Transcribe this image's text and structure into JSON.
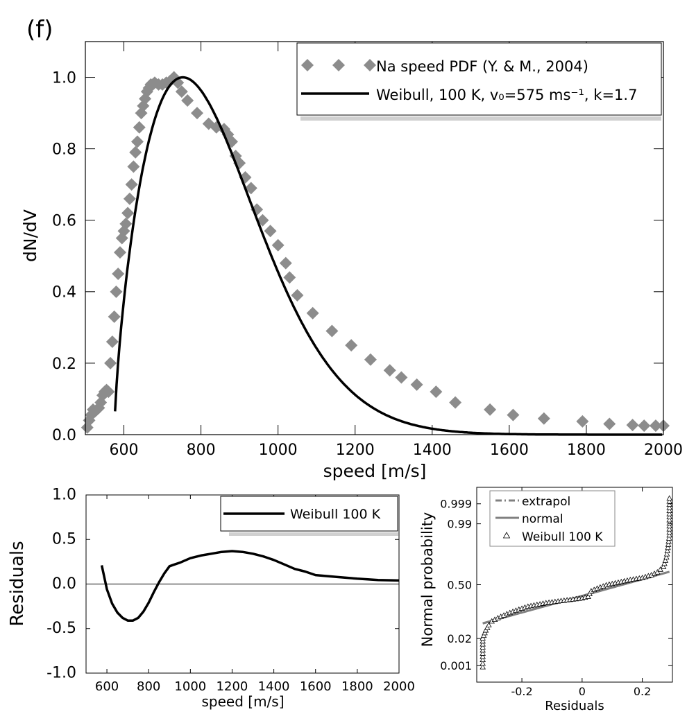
{
  "panel_label": "(f)",
  "chart_data": [
    {
      "id": "main",
      "type": "scatter",
      "title": "",
      "xlabel": "speed [m/s]",
      "ylabel": "dN/dV",
      "xlim": [
        500,
        2000
      ],
      "ylim": [
        0,
        1.1
      ],
      "xticks": [
        600,
        800,
        1000,
        1200,
        1400,
        1600,
        1800,
        2000
      ],
      "yticks": [
        0.0,
        0.2,
        0.4,
        0.6,
        0.8,
        1.0
      ],
      "ytick_labels": [
        "0.0",
        "0.2",
        "0.4",
        "0.6",
        "0.8",
        "1.0"
      ],
      "grid": false,
      "legend_position": "top-right",
      "series": [
        {
          "name": "Na speed PDF (Y. & M., 2004)",
          "style": "diamond-markers",
          "color": "#8c8c8c",
          "x": [
            505,
            510,
            515,
            520,
            525,
            530,
            535,
            540,
            545,
            550,
            555,
            560,
            565,
            570,
            575,
            580,
            585,
            590,
            595,
            600,
            605,
            610,
            615,
            620,
            625,
            630,
            635,
            640,
            645,
            650,
            655,
            660,
            665,
            670,
            675,
            680,
            690,
            700,
            710,
            720,
            730,
            740,
            750,
            765,
            790,
            820,
            840,
            860,
            870,
            880,
            890,
            900,
            915,
            930,
            945,
            960,
            980,
            1000,
            1020,
            1030,
            1050,
            1090,
            1140,
            1190,
            1240,
            1290,
            1320,
            1360,
            1410,
            1460,
            1550,
            1610,
            1690,
            1790,
            1860,
            1920,
            1950,
            1980,
            2000
          ],
          "y": [
            0.02,
            0.04,
            0.055,
            0.07,
            0.065,
            0.07,
            0.075,
            0.09,
            0.11,
            0.12,
            0.125,
            0.12,
            0.2,
            0.26,
            0.33,
            0.4,
            0.45,
            0.51,
            0.55,
            0.57,
            0.59,
            0.62,
            0.66,
            0.7,
            0.75,
            0.79,
            0.82,
            0.86,
            0.9,
            0.92,
            0.94,
            0.96,
            0.97,
            0.98,
            0.98,
            0.985,
            0.98,
            0.98,
            0.985,
            0.99,
            1.0,
            0.985,
            0.96,
            0.935,
            0.9,
            0.87,
            0.86,
            0.855,
            0.84,
            0.82,
            0.78,
            0.76,
            0.72,
            0.69,
            0.63,
            0.6,
            0.57,
            0.53,
            0.48,
            0.44,
            0.39,
            0.34,
            0.29,
            0.25,
            0.21,
            0.18,
            0.16,
            0.14,
            0.12,
            0.09,
            0.07,
            0.055,
            0.045,
            0.037,
            0.03,
            0.027,
            0.025,
            0.025,
            0.025
          ]
        },
        {
          "name": "Weibull, 100 K, v₀=575 ms⁻¹, k=1.7",
          "style": "line",
          "color": "#000000",
          "formula": "Weibull(x0=575, lambda=300, k=1.7), normalized to peak 1",
          "x0": 575,
          "scale": 300,
          "shape": 1.7,
          "x_end": 2000
        }
      ]
    },
    {
      "id": "residuals",
      "type": "line",
      "xlabel": "speed [m/s]",
      "ylabel": "Residuals",
      "xlim": [
        500,
        2000
      ],
      "ylim": [
        -1.0,
        1.0
      ],
      "xticks": [
        600,
        800,
        1000,
        1200,
        1400,
        1600,
        1800,
        2000
      ],
      "yticks": [
        -1.0,
        -0.5,
        0.0,
        0.5,
        1.0
      ],
      "ytick_labels": [
        "-1.0",
        "-0.5",
        "0.0",
        "0.5",
        "1.0"
      ],
      "legend_position": "top-right",
      "zero_line": true,
      "series": [
        {
          "name": "Weibull 100 K",
          "color": "#000000",
          "x": [
            575,
            600,
            625,
            650,
            675,
            700,
            725,
            750,
            775,
            800,
            825,
            850,
            875,
            900,
            925,
            950,
            1000,
            1050,
            1100,
            1150,
            1200,
            1250,
            1300,
            1350,
            1400,
            1450,
            1500,
            1550,
            1600,
            1700,
            1800,
            1900,
            2000
          ],
          "y": [
            0.21,
            -0.06,
            -0.22,
            -0.32,
            -0.38,
            -0.41,
            -0.41,
            -0.38,
            -0.31,
            -0.21,
            -0.09,
            0.02,
            0.12,
            0.2,
            0.22,
            0.24,
            0.29,
            0.32,
            0.34,
            0.36,
            0.37,
            0.36,
            0.34,
            0.31,
            0.27,
            0.22,
            0.17,
            0.14,
            0.1,
            0.08,
            0.06,
            0.045,
            0.04
          ]
        }
      ]
    },
    {
      "id": "normal-probability",
      "type": "scatter",
      "xlabel": "Residuals",
      "ylabel": "Normal probability",
      "xlim": [
        -0.35,
        0.3
      ],
      "ylim": [
        0.0001,
        0.9999
      ],
      "yscale": "normal-probability",
      "xticks": [
        -0.2,
        0,
        0.2
      ],
      "xtick_labels": [
        "-0.2",
        "0",
        "0.2"
      ],
      "yticks": [
        0.001,
        0.02,
        0.5,
        0.99,
        0.999
      ],
      "ytick_labels": [
        "0.001",
        "0.02",
        "0.50",
        "0.99",
        "0.999"
      ],
      "legend_position": "top-left",
      "series": [
        {
          "name": "extrapol",
          "style": "dash-dot",
          "color": "#808080",
          "x": [
            -0.33,
            0.29
          ],
          "y": [
            0.07,
            0.69
          ]
        },
        {
          "name": "normal",
          "style": "line",
          "color": "#808080",
          "x": [
            -0.33,
            0.29
          ],
          "y": [
            0.07,
            0.69
          ]
        },
        {
          "name": "Weibull 100 K",
          "style": "triangle-markers",
          "color": "#000000",
          "x": [
            -0.33,
            -0.33,
            -0.33,
            -0.33,
            -0.32,
            -0.31,
            -0.3,
            -0.28,
            -0.25,
            -0.22,
            -0.18,
            -0.12,
            -0.06,
            0.0,
            0.02,
            0.03,
            0.05,
            0.08,
            0.12,
            0.16,
            0.2,
            0.23,
            0.25,
            0.27,
            0.28,
            0.285,
            0.29,
            0.29,
            0.29
          ],
          "y": [
            0.0008,
            0.002,
            0.006,
            0.02,
            0.04,
            0.06,
            0.08,
            0.1,
            0.13,
            0.16,
            0.2,
            0.24,
            0.27,
            0.3,
            0.32,
            0.4,
            0.44,
            0.49,
            0.53,
            0.57,
            0.6,
            0.64,
            0.68,
            0.75,
            0.85,
            0.92,
            0.97,
            0.995,
            0.9995
          ]
        }
      ]
    }
  ]
}
